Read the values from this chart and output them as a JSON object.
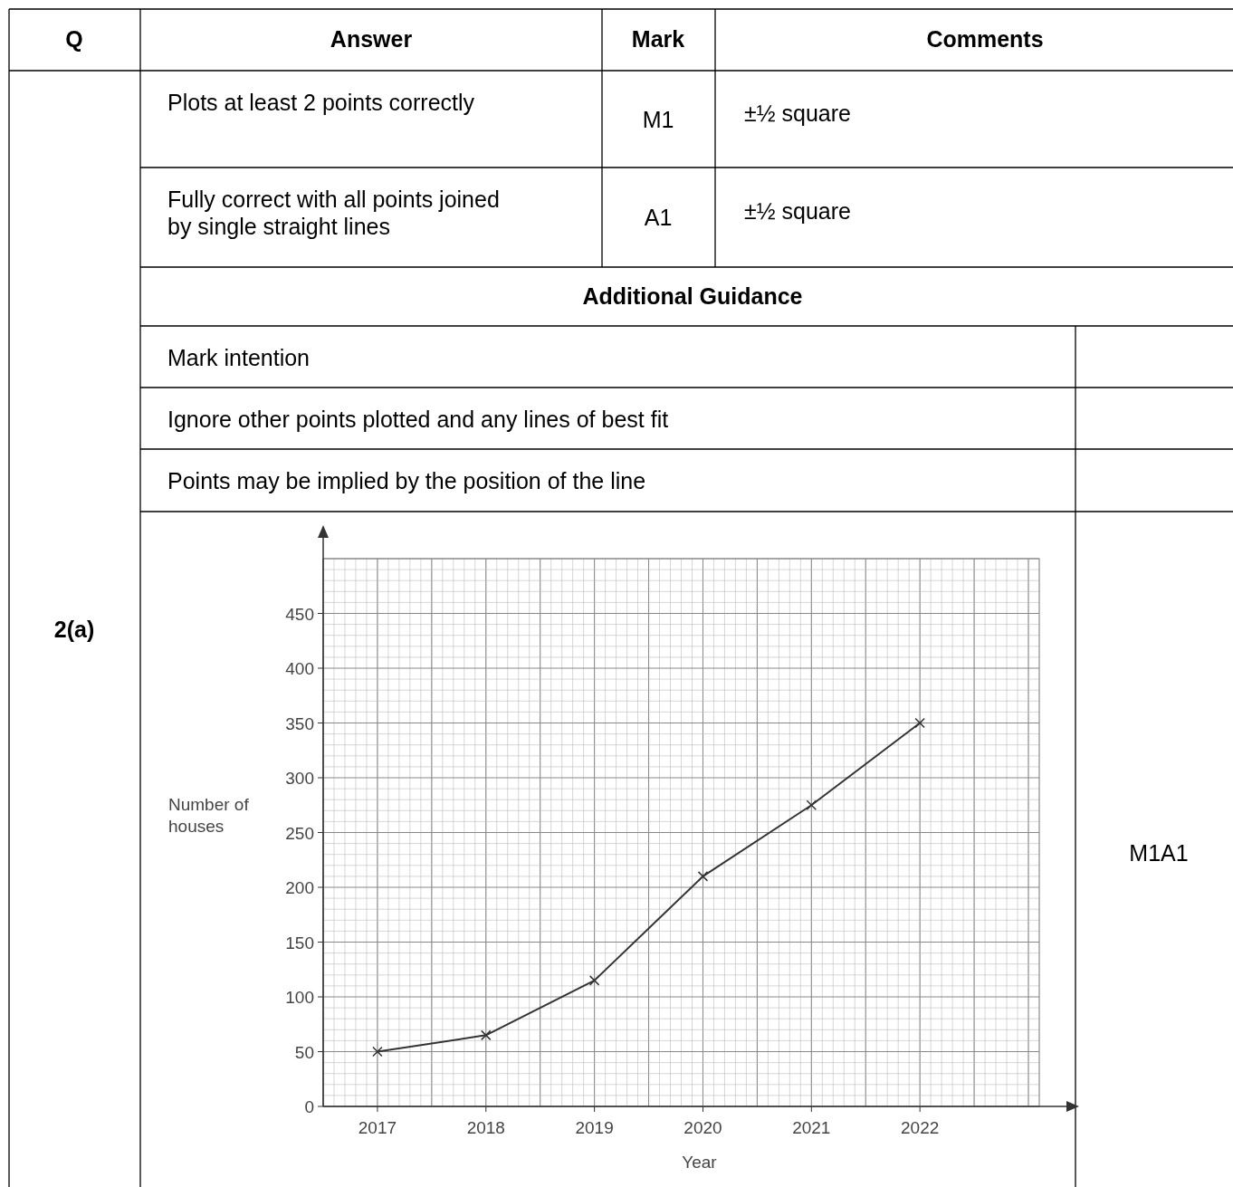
{
  "chart_data": {
    "type": "line",
    "xlabel": "Year",
    "ylabel": "Number of houses",
    "x": [
      2017,
      2018,
      2019,
      2020,
      2021,
      2022
    ],
    "series": [
      {
        "color": "#333333",
        "values": [
          50,
          65,
          115,
          210,
          275,
          350
        ]
      }
    ],
    "xlim": [
      2016.5,
      2023.1
    ],
    "xticks": [
      2017,
      2018,
      2019,
      2020,
      2021,
      2022
    ],
    "ylim": [
      0,
      500
    ],
    "yticks": [
      0,
      50,
      100,
      150,
      200,
      250,
      300,
      350,
      400,
      450
    ],
    "grid": true,
    "marker": "cross",
    "line_style": "solid",
    "annotations": [
      "Q",
      "Answer",
      "Mark",
      "Comments",
      "2(a)",
      "Plots at least 2 points correctly",
      "M1",
      "±½ square",
      "Fully correct with all points joined by single straight lines",
      "A1",
      "±½ square",
      "Additional Guidance",
      "Mark intention",
      "Ignore other points plotted and any lines of best fit",
      "Points may be implied by the position of the line",
      "M1A1"
    ]
  }
}
